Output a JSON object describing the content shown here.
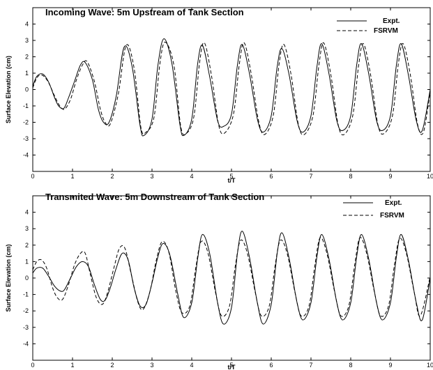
{
  "chart_data": [
    {
      "type": "line",
      "title": "Incoming Wave: 5m Upstream of Tank Section",
      "xlabel": "t/T",
      "ylabel": "Surface Elevation (cm)",
      "xlim": [
        0,
        10
      ],
      "ylim": [
        -5,
        5
      ],
      "x_ticks": [
        0,
        1,
        2,
        3,
        4,
        5,
        6,
        7,
        8,
        9,
        10
      ],
      "y_ticks": [
        -4,
        -3,
        -2,
        -1,
        0,
        1,
        2,
        3,
        4
      ],
      "legend_position": "top-right",
      "series": [
        {
          "name": "Expt.",
          "style": "solid",
          "color": "#000000",
          "x": [
            0,
            0.1,
            0.25,
            0.4,
            0.55,
            0.65,
            0.78,
            0.9,
            1.05,
            1.2,
            1.32,
            1.5,
            1.65,
            1.78,
            1.92,
            2.1,
            2.3,
            2.5,
            2.7,
            2.8,
            3.0,
            3.15,
            3.3,
            3.5,
            3.7,
            3.8,
            4.0,
            4.15,
            4.27,
            4.45,
            4.65,
            4.8,
            5.0,
            5.15,
            5.27,
            5.45,
            5.65,
            5.8,
            6.0,
            6.15,
            6.27,
            6.45,
            6.65,
            6.8,
            7.0,
            7.15,
            7.27,
            7.45,
            7.65,
            7.8,
            8.0,
            8.15,
            8.27,
            8.45,
            8.65,
            8.8,
            9.0,
            9.15,
            9.27,
            9.45,
            9.65,
            9.8,
            10.0
          ],
          "y": [
            0.2,
            0.8,
            0.95,
            0.45,
            -0.5,
            -1.0,
            -1.15,
            -0.5,
            0.5,
            1.5,
            1.65,
            0.6,
            -1.2,
            -2.0,
            -2.0,
            -0.4,
            2.6,
            1.4,
            -2.2,
            -2.8,
            -1.8,
            1.5,
            3.1,
            1.6,
            -2.1,
            -2.8,
            -1.8,
            1.6,
            2.7,
            0.8,
            -1.9,
            -2.25,
            -1.5,
            1.5,
            2.75,
            1.0,
            -1.8,
            -2.6,
            -1.6,
            1.4,
            2.5,
            0.9,
            -1.9,
            -2.6,
            -1.6,
            1.4,
            2.8,
            1.0,
            -1.9,
            -2.5,
            -1.6,
            1.5,
            2.8,
            1.0,
            -1.9,
            -2.5,
            -1.6,
            1.5,
            2.8,
            0.9,
            -1.9,
            -2.5,
            0.0
          ]
        },
        {
          "name": "FSRVM",
          "style": "dashed",
          "color": "#000000",
          "x": [
            0,
            0.1,
            0.22,
            0.38,
            0.55,
            0.68,
            0.8,
            0.95,
            1.1,
            1.25,
            1.37,
            1.55,
            1.7,
            1.82,
            1.95,
            2.15,
            2.35,
            2.55,
            2.72,
            2.85,
            3.05,
            3.2,
            3.33,
            3.55,
            3.72,
            3.85,
            4.05,
            4.2,
            4.32,
            4.5,
            4.68,
            4.83,
            5.05,
            5.2,
            5.32,
            5.5,
            5.68,
            5.83,
            6.05,
            6.2,
            6.32,
            6.5,
            6.68,
            6.83,
            7.05,
            7.2,
            7.32,
            7.5,
            7.68,
            7.83,
            8.05,
            8.2,
            8.32,
            8.5,
            8.68,
            8.83,
            9.05,
            9.2,
            9.32,
            9.5,
            9.68,
            9.83,
            10.0
          ],
          "y": [
            0.1,
            0.7,
            0.9,
            0.5,
            -0.4,
            -1.0,
            -1.2,
            -0.6,
            0.6,
            1.5,
            1.7,
            0.5,
            -1.2,
            -2.0,
            -2.1,
            -0.3,
            2.7,
            1.3,
            -2.3,
            -2.6,
            -1.7,
            1.6,
            2.9,
            1.5,
            -2.2,
            -2.7,
            -1.7,
            1.7,
            2.85,
            0.8,
            -2.2,
            -2.65,
            -1.5,
            1.6,
            2.85,
            0.9,
            -1.9,
            -2.75,
            -1.6,
            1.6,
            2.75,
            0.9,
            -2.1,
            -2.75,
            -1.6,
            1.5,
            2.85,
            0.9,
            -2.1,
            -2.75,
            -1.6,
            1.5,
            2.8,
            0.9,
            -2.1,
            -2.7,
            -1.6,
            1.6,
            2.8,
            0.9,
            -2.1,
            -2.6,
            -0.1
          ]
        }
      ]
    },
    {
      "type": "line",
      "title": "Transmited Wave: 5m Downstream of Tank Section",
      "xlabel": "t/T",
      "ylabel": "Surface Elevation (cm)",
      "xlim": [
        0,
        10
      ],
      "ylim": [
        -5,
        5
      ],
      "x_ticks": [
        0,
        1,
        2,
        3,
        4,
        5,
        6,
        7,
        8,
        9,
        10
      ],
      "y_ticks": [
        -4,
        -3,
        -2,
        -1,
        0,
        1,
        2,
        3,
        4
      ],
      "legend_position": "top-right",
      "series": [
        {
          "name": "Expt.",
          "style": "solid",
          "color": "#000000",
          "x": [
            0,
            0.1,
            0.25,
            0.4,
            0.55,
            0.7,
            0.8,
            0.95,
            1.1,
            1.25,
            1.4,
            1.55,
            1.7,
            1.82,
            1.95,
            2.1,
            2.25,
            2.4,
            2.55,
            2.7,
            2.85,
            3.0,
            3.15,
            3.28,
            3.45,
            3.65,
            3.8,
            4.0,
            4.15,
            4.27,
            4.45,
            4.65,
            4.8,
            5.0,
            5.15,
            5.27,
            5.45,
            5.65,
            5.8,
            6.0,
            6.15,
            6.27,
            6.45,
            6.65,
            6.8,
            7.0,
            7.15,
            7.27,
            7.45,
            7.65,
            7.8,
            8.0,
            8.15,
            8.27,
            8.45,
            8.65,
            8.8,
            9.0,
            9.15,
            9.27,
            9.45,
            9.65,
            9.8,
            10.0
          ],
          "y": [
            0.3,
            0.6,
            0.6,
            0.1,
            -0.5,
            -0.8,
            -0.7,
            0.0,
            0.7,
            1.0,
            0.7,
            -0.4,
            -1.3,
            -1.35,
            -0.6,
            0.6,
            1.5,
            1.1,
            -0.6,
            -1.7,
            -1.6,
            -0.3,
            1.3,
            2.1,
            1.4,
            -1.0,
            -2.4,
            -1.5,
            1.2,
            2.65,
            1.5,
            -1.5,
            -2.8,
            -1.8,
            1.5,
            2.85,
            1.3,
            -1.5,
            -2.8,
            -1.6,
            1.5,
            2.75,
            1.2,
            -1.5,
            -2.55,
            -1.5,
            1.3,
            2.65,
            1.2,
            -1.5,
            -2.55,
            -1.5,
            1.3,
            2.65,
            1.2,
            -1.5,
            -2.55,
            -1.5,
            1.3,
            2.65,
            1.1,
            -1.5,
            -2.55,
            0.0
          ]
        },
        {
          "name": "FSRVM",
          "style": "dashed",
          "color": "#000000",
          "x": [
            0,
            0.1,
            0.22,
            0.35,
            0.5,
            0.62,
            0.75,
            0.9,
            1.05,
            1.2,
            1.32,
            1.45,
            1.6,
            1.75,
            1.88,
            2.05,
            2.18,
            2.32,
            2.48,
            2.65,
            2.78,
            2.95,
            3.1,
            3.25,
            3.42,
            3.6,
            3.75,
            3.95,
            4.1,
            4.23,
            4.4,
            4.6,
            4.75,
            4.95,
            5.1,
            5.23,
            5.4,
            5.6,
            5.75,
            5.95,
            6.1,
            6.23,
            6.4,
            6.6,
            6.75,
            6.95,
            7.1,
            7.23,
            7.4,
            7.6,
            7.75,
            7.95,
            8.1,
            8.23,
            8.4,
            8.6,
            8.75,
            8.95,
            9.1,
            9.23,
            9.4,
            9.6,
            9.75,
            10.0
          ],
          "y": [
            0.5,
            1.0,
            1.1,
            0.6,
            -0.6,
            -1.2,
            -1.3,
            -0.4,
            0.8,
            1.5,
            1.5,
            0.2,
            -1.2,
            -1.6,
            -0.9,
            0.7,
            1.8,
            1.8,
            0.2,
            -1.5,
            -1.9,
            -0.8,
            1.0,
            2.2,
            1.6,
            -0.8,
            -2.1,
            -1.7,
            0.6,
            2.2,
            1.6,
            -0.9,
            -2.3,
            -1.7,
            0.8,
            2.3,
            1.5,
            -0.9,
            -2.3,
            -1.7,
            0.8,
            2.3,
            1.5,
            -0.9,
            -2.3,
            -1.7,
            0.8,
            2.45,
            1.5,
            -0.9,
            -2.3,
            -1.7,
            0.8,
            2.45,
            1.5,
            -0.9,
            -2.3,
            -1.7,
            0.8,
            2.4,
            1.5,
            -0.9,
            -2.3,
            0.1
          ]
        }
      ]
    }
  ]
}
